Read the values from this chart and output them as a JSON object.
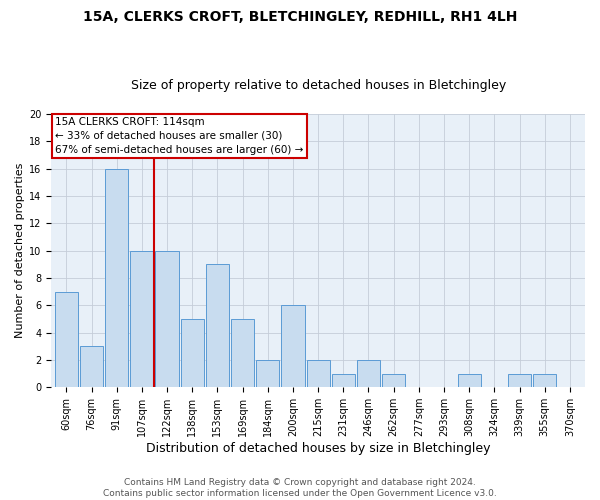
{
  "title": "15A, CLERKS CROFT, BLETCHINGLEY, REDHILL, RH1 4LH",
  "subtitle": "Size of property relative to detached houses in Bletchingley",
  "xlabel": "Distribution of detached houses by size in Bletchingley",
  "ylabel": "Number of detached properties",
  "categories": [
    "60sqm",
    "76sqm",
    "91sqm",
    "107sqm",
    "122sqm",
    "138sqm",
    "153sqm",
    "169sqm",
    "184sqm",
    "200sqm",
    "215sqm",
    "231sqm",
    "246sqm",
    "262sqm",
    "277sqm",
    "293sqm",
    "308sqm",
    "324sqm",
    "339sqm",
    "355sqm",
    "370sqm"
  ],
  "values": [
    7,
    3,
    16,
    10,
    10,
    5,
    9,
    5,
    2,
    6,
    2,
    1,
    2,
    1,
    0,
    0,
    1,
    0,
    1,
    1,
    0
  ],
  "bar_facecolor": "#c8dcef",
  "bar_edgecolor": "#5b9bd5",
  "vline_x": 3.5,
  "vline_color": "#cc0000",
  "annotation_title": "15A CLERKS CROFT: 114sqm",
  "annotation_line1": "← 33% of detached houses are smaller (30)",
  "annotation_line2": "67% of semi-detached houses are larger (60) →",
  "annotation_box_edgecolor": "#cc0000",
  "annotation_box_facecolor": "#ffffff",
  "ylim": [
    0,
    20
  ],
  "yticks": [
    0,
    2,
    4,
    6,
    8,
    10,
    12,
    14,
    16,
    18,
    20
  ],
  "background_color": "#e8f0f8",
  "grid_color": "#c5cdd8",
  "title_fontsize": 10,
  "subtitle_fontsize": 9,
  "xlabel_fontsize": 9,
  "ylabel_fontsize": 8,
  "tick_fontsize": 7,
  "annotation_fontsize": 7.5,
  "footer_line1": "Contains HM Land Registry data © Crown copyright and database right 2024.",
  "footer_line2": "Contains public sector information licensed under the Open Government Licence v3.0.",
  "footer_fontsize": 6.5,
  "footer_color": "#555555"
}
